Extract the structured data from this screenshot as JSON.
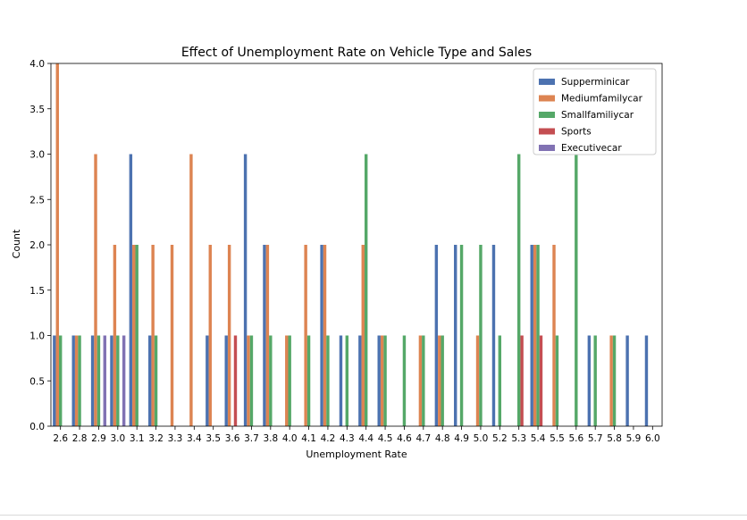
{
  "chart_data": {
    "type": "bar",
    "title": "Effect of Unemployment Rate on Vehicle Type and Sales",
    "xlabel": "Unemployment Rate",
    "ylabel": "Count",
    "ylim": [
      0,
      4.0
    ],
    "yticks": [
      "0.0",
      "0.5",
      "1.0",
      "1.5",
      "2.0",
      "2.5",
      "3.0",
      "3.5",
      "4.0"
    ],
    "legend_position": "top-right",
    "grid": false,
    "categories": [
      "2.6",
      "2.8",
      "2.9",
      "3.0",
      "3.1",
      "3.2",
      "3.3",
      "3.4",
      "3.5",
      "3.6",
      "3.7",
      "3.8",
      "4.0",
      "4.1",
      "4.2",
      "4.3",
      "4.4",
      "4.5",
      "4.6",
      "4.7",
      "4.8",
      "4.9",
      "5.0",
      "5.2",
      "5.3",
      "5.4",
      "5.5",
      "5.6",
      "5.7",
      "5.8",
      "5.9",
      "6.0"
    ],
    "series": [
      {
        "name": "Supperminicar",
        "color": "#4c72b0",
        "values": [
          1,
          1,
          1,
          1,
          3,
          1,
          null,
          null,
          1,
          1,
          3,
          2,
          null,
          null,
          2,
          1,
          1,
          1,
          null,
          null,
          2,
          2,
          null,
          2,
          null,
          2,
          null,
          null,
          1,
          null,
          1,
          1
        ]
      },
      {
        "name": "Mediumfamilycar",
        "color": "#dd8452",
        "values": [
          4,
          1,
          3,
          2,
          2,
          2,
          2,
          3,
          2,
          2,
          1,
          2,
          1,
          2,
          2,
          null,
          2,
          1,
          null,
          1,
          1,
          null,
          1,
          null,
          null,
          2,
          2,
          null,
          null,
          1,
          null,
          null
        ]
      },
      {
        "name": "Smallfamiliycar",
        "color": "#55a868",
        "values": [
          1,
          1,
          1,
          1,
          2,
          1,
          null,
          null,
          null,
          null,
          1,
          1,
          1,
          1,
          1,
          1,
          3,
          1,
          1,
          1,
          1,
          2,
          2,
          1,
          3,
          2,
          1,
          3,
          1,
          1,
          null,
          null
        ]
      },
      {
        "name": "Sports",
        "color": "#c44e52",
        "values": [
          null,
          null,
          null,
          null,
          null,
          null,
          null,
          null,
          null,
          1,
          null,
          null,
          null,
          null,
          null,
          null,
          null,
          null,
          null,
          null,
          null,
          null,
          null,
          null,
          1,
          1,
          null,
          null,
          null,
          null,
          null,
          null
        ]
      },
      {
        "name": "Executivecar",
        "color": "#8172b3",
        "values": [
          null,
          null,
          1,
          1,
          null,
          null,
          null,
          null,
          null,
          null,
          null,
          null,
          null,
          null,
          null,
          null,
          null,
          null,
          null,
          null,
          null,
          null,
          null,
          null,
          null,
          null,
          null,
          null,
          null,
          null,
          null,
          null
        ]
      }
    ]
  }
}
